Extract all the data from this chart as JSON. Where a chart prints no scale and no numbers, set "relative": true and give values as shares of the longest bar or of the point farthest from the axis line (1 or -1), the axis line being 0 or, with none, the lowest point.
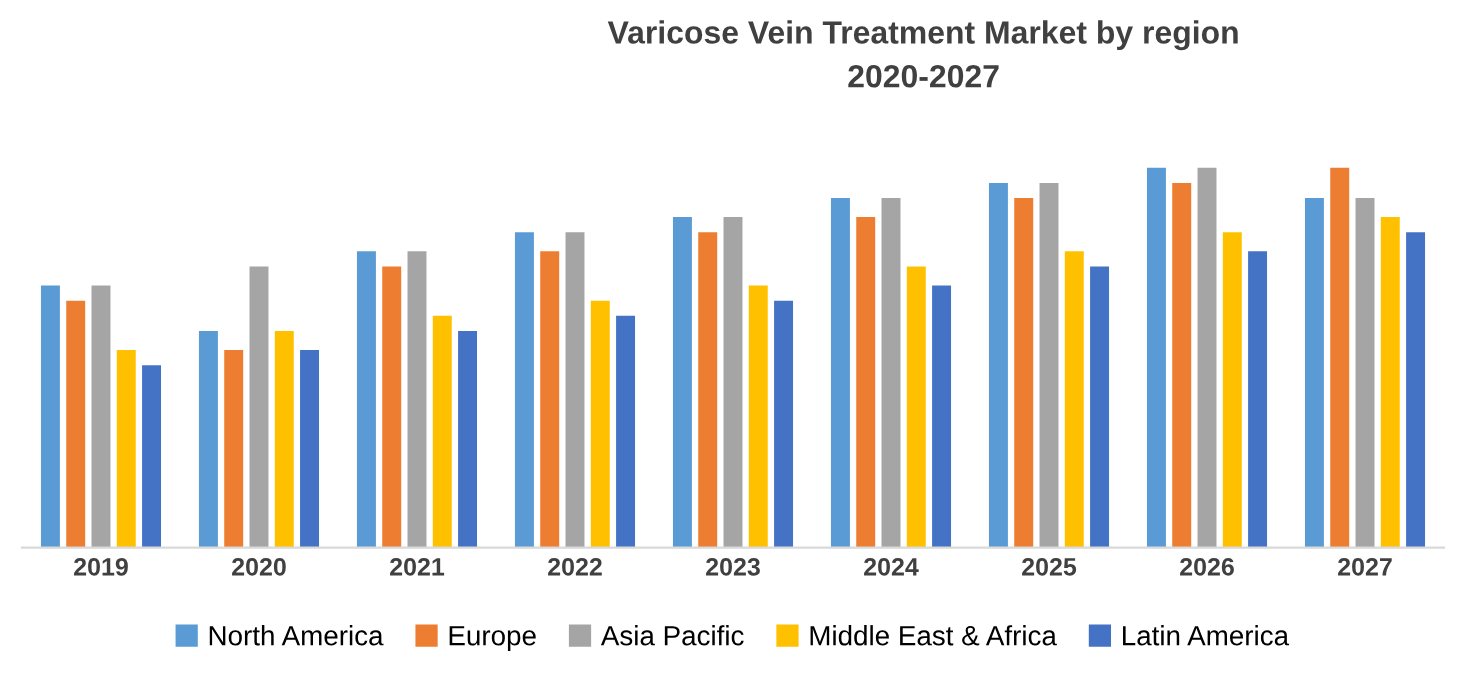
{
  "chart_data": {
    "type": "bar",
    "title": "Varicose Vein Treatment Market by region\n2020-2027",
    "relative": true,
    "legend": "bottom",
    "grid": false,
    "categories": [
      "2019",
      "2020",
      "2021",
      "2022",
      "2023",
      "2024",
      "2025",
      "2026",
      "2027"
    ],
    "series": [
      {
        "name": "North America",
        "color": "#5b9bd5",
        "values": [
          0.69,
          0.57,
          0.78,
          0.83,
          0.87,
          0.92,
          0.96,
          1,
          0.92
        ]
      },
      {
        "name": "Europe",
        "color": "#ed7d31",
        "values": [
          0.65,
          0.52,
          0.74,
          0.78,
          0.83,
          0.87,
          0.92,
          0.96,
          1
        ]
      },
      {
        "name": "Asia Pacific",
        "color": "#a5a5a5",
        "values": [
          0.69,
          0.74,
          0.78,
          0.83,
          0.87,
          0.92,
          0.96,
          1,
          0.92
        ]
      },
      {
        "name": "Middle East & Africa",
        "color": "#ffc000",
        "values": [
          0.52,
          0.57,
          0.61,
          0.65,
          0.69,
          0.74,
          0.78,
          0.83,
          0.87
        ]
      },
      {
        "name": "Latin America",
        "color": "#4472c4",
        "values": [
          0.48,
          0.52,
          0.57,
          0.61,
          0.65,
          0.69,
          0.74,
          0.78,
          0.83
        ]
      }
    ]
  }
}
